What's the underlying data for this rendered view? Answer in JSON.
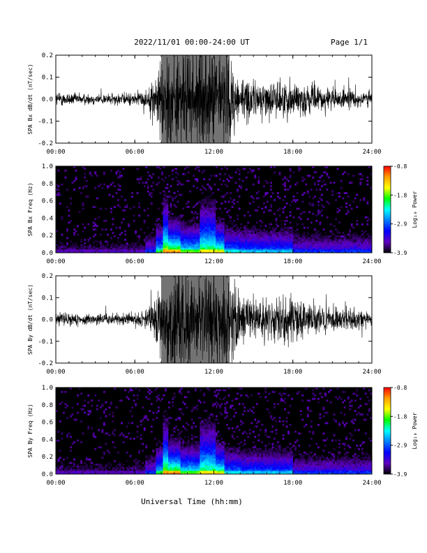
{
  "header": {
    "title": "2022/11/01  00:00-24:00 UT",
    "page": "Page 1/1"
  },
  "x_axis_label": "Universal Time (hh:mm)",
  "colorbar": {
    "label": "Log₁₀ Power",
    "ticks": [
      "-0.8",
      "-1.8",
      "-2.9",
      "-3.9"
    ],
    "colors": [
      "#ff0000",
      "#ffa000",
      "#ffff00",
      "#00ff00",
      "#00ffff",
      "#0080ff",
      "#0000ff",
      "#6000c0",
      "#000000"
    ]
  },
  "chart_data": [
    {
      "type": "line",
      "ylabel": "SPA Bx dB/dt (nT/sec)",
      "ylim": [
        -0.2,
        0.2
      ],
      "xlim": [
        "00:00",
        "24:00"
      ],
      "x_ticks": [
        "00:00",
        "06:00",
        "12:00",
        "18:00",
        "24:00"
      ],
      "y_ticks": [
        "-0.2",
        "-0.1",
        "0.0",
        "0.1",
        "0.2"
      ],
      "envelope": {
        "hours": [
          0,
          2,
          4,
          6,
          7,
          7.5,
          8,
          9,
          10,
          11,
          12,
          13,
          14,
          15,
          16,
          17,
          18,
          19,
          20,
          21,
          22,
          23,
          24
        ],
        "amplitude": [
          0.04,
          0.03,
          0.03,
          0.035,
          0.05,
          0.12,
          0.25,
          0.25,
          0.25,
          0.25,
          0.25,
          0.25,
          0.12,
          0.1,
          0.09,
          0.1,
          0.1,
          0.08,
          0.07,
          0.06,
          0.05,
          0.05,
          0.04
        ]
      }
    },
    {
      "type": "heatmap",
      "ylabel": "SPA Bx Freq (Hz)",
      "ylim": [
        0.0,
        1.0
      ],
      "xlim": [
        "00:00",
        "24:00"
      ],
      "x_ticks": [
        "00:00",
        "06:00",
        "12:00",
        "18:00",
        "24:00"
      ],
      "y_ticks": [
        "0.0",
        "0.2",
        "0.4",
        "0.6",
        "0.8",
        "1.0"
      ],
      "colorbar_range": [
        -3.9,
        -0.8
      ]
    },
    {
      "type": "line",
      "ylabel": "SPA By dB/dt (nT/sec)",
      "ylim": [
        -0.2,
        0.2
      ],
      "xlim": [
        "00:00",
        "24:00"
      ],
      "x_ticks": [
        "00:00",
        "06:00",
        "12:00",
        "18:00",
        "24:00"
      ],
      "y_ticks": [
        "-0.2",
        "-0.1",
        "0.0",
        "0.1",
        "0.2"
      ],
      "envelope": {
        "hours": [
          0,
          2,
          4,
          6,
          7,
          7.5,
          8,
          9,
          10,
          11,
          12,
          13,
          14,
          15,
          16,
          17,
          18,
          19,
          20,
          21,
          22,
          23,
          24
        ],
        "amplitude": [
          0.04,
          0.03,
          0.03,
          0.035,
          0.06,
          0.15,
          0.25,
          0.25,
          0.25,
          0.25,
          0.25,
          0.25,
          0.14,
          0.12,
          0.11,
          0.12,
          0.12,
          0.09,
          0.08,
          0.07,
          0.06,
          0.05,
          0.04
        ]
      }
    },
    {
      "type": "heatmap",
      "ylabel": "SPA By Freq (Hz)",
      "ylim": [
        0.0,
        1.0
      ],
      "xlim": [
        "00:00",
        "24:00"
      ],
      "x_ticks": [
        "00:00",
        "06:00",
        "12:00",
        "18:00",
        "24:00"
      ],
      "y_ticks": [
        "0.0",
        "0.2",
        "0.4",
        "0.6",
        "0.8",
        "1.0"
      ],
      "colorbar_range": [
        -3.9,
        -0.8
      ]
    }
  ]
}
